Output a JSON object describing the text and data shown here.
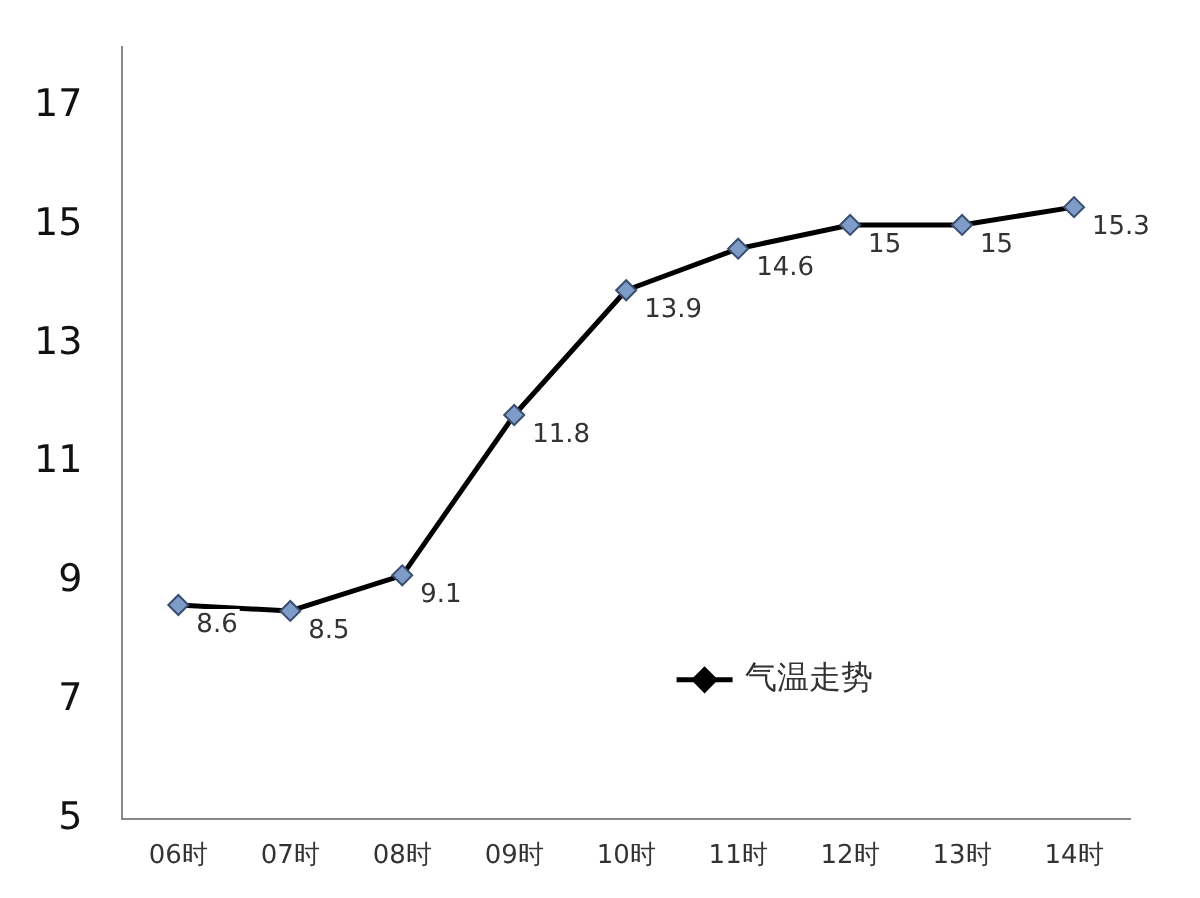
{
  "chart_data": {
    "type": "line",
    "categories": [
      "06时",
      "07时",
      "08时",
      "09时",
      "10时",
      "11时",
      "12时",
      "13时",
      "14时"
    ],
    "series": [
      {
        "name": "气温走势",
        "color": "#000000",
        "values": [
          8.6,
          8.5,
          9.1,
          11.8,
          13.9,
          14.6,
          15,
          15,
          15.3
        ]
      }
    ],
    "ylim": [
      5,
      18
    ],
    "yticks": [
      5,
      7,
      9,
      11,
      13,
      15,
      17
    ],
    "grid": false,
    "legend": "bottom right",
    "marker": "diamond",
    "data_labels": true
  }
}
